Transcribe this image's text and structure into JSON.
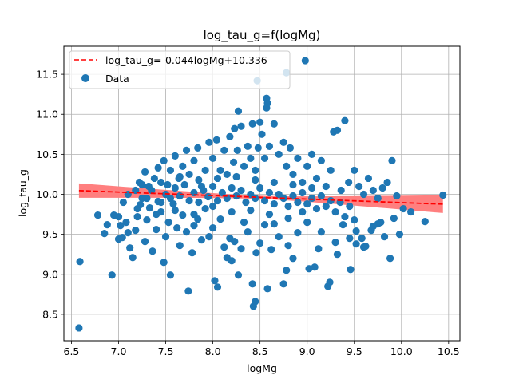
{
  "chart_data": {
    "type": "scatter",
    "title": "log_tau_g=f(logMg)",
    "xlabel": "logMg",
    "ylabel": "log_tau_g",
    "xlim": [
      6.42,
      10.62
    ],
    "ylim": [
      8.17,
      11.85
    ],
    "xticks": [
      6.5,
      7.0,
      7.5,
      8.0,
      8.5,
      9.0,
      9.5,
      10.0,
      10.5
    ],
    "xtick_labels": [
      "6.5",
      "7.0",
      "7.5",
      "8.0",
      "8.5",
      "9.0",
      "9.5",
      "10.0",
      "10.5"
    ],
    "yticks": [
      8.5,
      9.0,
      9.5,
      10.0,
      10.5,
      11.0,
      11.5
    ],
    "ytick_labels": [
      "8.5",
      "9.0",
      "9.5",
      "10.0",
      "10.5",
      "11.0",
      "11.5"
    ],
    "grid": true,
    "legend_position": "top-left",
    "colors": {
      "points": "#1f77b4",
      "fit": "#ff0000",
      "band": "#ff7f7f"
    },
    "fit": {
      "label": "log_tau_g=-0.044logMg+10.336",
      "slope": -0.044,
      "intercept": 10.336,
      "x_range": [
        6.58,
        10.44
      ],
      "band_half_width_at_ends": [
        0.09,
        0.11
      ],
      "band_half_width_at_center": 0.02
    },
    "series": [
      {
        "name": "Data",
        "points": [
          [
            6.58,
            8.33
          ],
          [
            6.59,
            9.16
          ],
          [
            6.78,
            9.74
          ],
          [
            6.85,
            9.51
          ],
          [
            6.88,
            9.62
          ],
          [
            6.93,
            8.99
          ],
          [
            6.95,
            9.74
          ],
          [
            7.0,
            9.44
          ],
          [
            7.02,
            9.61
          ],
          [
            7.04,
            9.46
          ],
          [
            7.05,
            9.9
          ],
          [
            7.08,
            9.65
          ],
          [
            7.1,
            9.52
          ],
          [
            7.12,
            9.33
          ],
          [
            7.15,
            9.21
          ],
          [
            7.18,
            9.55
          ],
          [
            7.2,
            9.72
          ],
          [
            7.23,
            9.87
          ],
          [
            7.25,
            9.95
          ],
          [
            7.28,
            9.41
          ],
          [
            7.3,
            9.68
          ],
          [
            7.33,
            9.83
          ],
          [
            7.36,
            9.29
          ],
          [
            7.4,
            9.56
          ],
          [
            7.42,
            9.91
          ],
          [
            7.45,
            9.78
          ],
          [
            7.48,
            9.15
          ],
          [
            7.5,
            9.47
          ],
          [
            7.53,
            9.65
          ],
          [
            7.55,
            8.99
          ],
          [
            7.58,
            9.88
          ],
          [
            7.62,
            9.58
          ],
          [
            7.65,
            9.36
          ],
          [
            7.68,
            9.74
          ],
          [
            7.72,
            9.53
          ],
          [
            7.74,
            8.79
          ],
          [
            7.78,
            9.27
          ],
          [
            7.8,
            9.61
          ],
          [
            7.84,
            9.69
          ],
          [
            7.88,
            9.43
          ],
          [
            7.92,
            9.82
          ],
          [
            7.96,
            9.47
          ],
          [
            8.0,
            9.58
          ],
          [
            8.02,
            8.92
          ],
          [
            8.05,
            8.84
          ],
          [
            8.08,
            9.69
          ],
          [
            8.12,
            9.34
          ],
          [
            8.15,
            9.21
          ],
          [
            8.18,
            9.45
          ],
          [
            8.2,
            9.17
          ],
          [
            8.23,
            9.41
          ],
          [
            8.27,
            8.99
          ],
          [
            8.3,
            9.32
          ],
          [
            8.33,
            9.65
          ],
          [
            8.37,
            9.53
          ],
          [
            8.42,
            8.88
          ],
          [
            8.43,
            8.6
          ],
          [
            8.45,
            8.66
          ],
          [
            8.46,
            9.27
          ],
          [
            8.5,
            9.39
          ],
          [
            8.55,
            9.62
          ],
          [
            8.58,
            8.82
          ],
          [
            8.62,
            9.31
          ],
          [
            8.65,
            9.63
          ],
          [
            8.7,
            9.47
          ],
          [
            8.75,
            8.88
          ],
          [
            8.78,
            9.05
          ],
          [
            8.8,
            9.36
          ],
          [
            8.85,
            9.2
          ],
          [
            8.9,
            9.52
          ],
          [
            8.95,
            9.78
          ],
          [
            9.02,
            9.07
          ],
          [
            9.08,
            9.09
          ],
          [
            9.15,
            9.53
          ],
          [
            9.22,
            8.85
          ],
          [
            9.24,
            8.9
          ],
          [
            9.3,
            9.4
          ],
          [
            9.38,
            9.62
          ],
          [
            9.46,
            9.06
          ],
          [
            9.52,
            9.54
          ],
          [
            9.6,
            9.34
          ],
          [
            9.68,
            9.55
          ],
          [
            9.75,
            9.63
          ],
          [
            9.82,
            9.47
          ],
          [
            9.88,
            9.2
          ],
          [
            9.98,
            9.5
          ],
          [
            10.1,
            9.78
          ],
          [
            10.25,
            9.66
          ],
          [
            10.44,
            9.99
          ],
          [
            7.0,
            9.72
          ],
          [
            7.1,
            10.0
          ],
          [
            7.18,
            10.05
          ],
          [
            7.22,
            10.15
          ],
          [
            7.28,
            10.28
          ],
          [
            7.32,
            10.1
          ],
          [
            7.38,
            10.2
          ],
          [
            7.42,
            10.33
          ],
          [
            7.48,
            10.42
          ],
          [
            7.52,
            10.12
          ],
          [
            7.55,
            10.3
          ],
          [
            7.6,
            10.48
          ],
          [
            7.64,
            10.2
          ],
          [
            7.68,
            10.35
          ],
          [
            7.72,
            10.55
          ],
          [
            7.75,
            10.25
          ],
          [
            7.8,
            10.42
          ],
          [
            7.84,
            10.58
          ],
          [
            7.88,
            10.1
          ],
          [
            7.92,
            10.3
          ],
          [
            7.96,
            10.65
          ],
          [
            8.0,
            10.45
          ],
          [
            8.04,
            10.68
          ],
          [
            8.08,
            10.3
          ],
          [
            8.12,
            10.55
          ],
          [
            8.15,
            10.25
          ],
          [
            8.18,
            10.72
          ],
          [
            8.22,
            10.4
          ],
          [
            8.26,
            10.55
          ],
          [
            8.3,
            10.85
          ],
          [
            8.33,
            10.35
          ],
          [
            8.37,
            10.6
          ],
          [
            8.4,
            10.45
          ],
          [
            8.42,
            10.88
          ],
          [
            8.45,
            10.3
          ],
          [
            8.48,
            10.58
          ],
          [
            8.5,
            10.9
          ],
          [
            8.52,
            10.75
          ],
          [
            8.55,
            10.45
          ],
          [
            8.57,
            11.2
          ],
          [
            8.58,
            11.14
          ],
          [
            8.6,
            10.6
          ],
          [
            8.65,
            10.88
          ],
          [
            8.7,
            10.5
          ],
          [
            8.75,
            10.65
          ],
          [
            8.78,
            10.35
          ],
          [
            8.82,
            10.58
          ],
          [
            8.85,
            10.25
          ],
          [
            8.9,
            10.45
          ],
          [
            8.95,
            10.15
          ],
          [
            9.0,
            10.35
          ],
          [
            9.05,
            10.5
          ],
          [
            9.1,
            10.2
          ],
          [
            9.15,
            10.42
          ],
          [
            9.2,
            10.1
          ],
          [
            9.25,
            10.3
          ],
          [
            9.28,
            10.78
          ],
          [
            9.32,
            10.8
          ],
          [
            9.36,
            10.05
          ],
          [
            9.4,
            10.92
          ],
          [
            9.44,
            10.15
          ],
          [
            9.5,
            10.3
          ],
          [
            9.55,
            10.1
          ],
          [
            9.6,
            10.0
          ],
          [
            9.65,
            10.2
          ],
          [
            9.7,
            10.05
          ],
          [
            9.75,
            9.95
          ],
          [
            9.8,
            10.08
          ],
          [
            9.85,
            10.15
          ],
          [
            9.9,
            10.42
          ],
          [
            9.95,
            9.98
          ],
          [
            8.23,
            10.82
          ],
          [
            8.27,
            11.04
          ],
          [
            8.47,
            11.42
          ],
          [
            8.57,
            11.08
          ],
          [
            8.78,
            11.52
          ],
          [
            8.98,
            11.67
          ],
          [
            7.3,
            9.95
          ],
          [
            7.35,
            10.05
          ],
          [
            7.45,
            9.9
          ],
          [
            7.5,
            10.0
          ],
          [
            7.55,
            9.95
          ],
          [
            7.6,
            10.08
          ],
          [
            7.65,
            9.98
          ],
          [
            7.7,
            10.12
          ],
          [
            7.75,
            9.92
          ],
          [
            7.8,
            10.02
          ],
          [
            7.85,
            9.9
          ],
          [
            7.9,
            10.05
          ],
          [
            7.95,
            9.97
          ],
          [
            8.0,
            10.1
          ],
          [
            8.05,
            9.92
          ],
          [
            8.1,
            10.02
          ],
          [
            8.15,
            9.95
          ],
          [
            8.2,
            10.08
          ],
          [
            8.25,
            9.98
          ],
          [
            8.3,
            10.05
          ],
          [
            8.35,
            9.9
          ],
          [
            8.4,
            10.0
          ],
          [
            8.45,
            9.95
          ],
          [
            8.5,
            10.08
          ],
          [
            8.55,
            9.92
          ],
          [
            8.6,
            10.02
          ],
          [
            8.65,
            9.88
          ],
          [
            8.7,
            10.0
          ],
          [
            8.75,
            9.95
          ],
          [
            8.8,
            9.85
          ],
          [
            8.85,
            9.98
          ],
          [
            8.9,
            9.9
          ],
          [
            8.95,
            10.02
          ],
          [
            9.0,
            9.88
          ],
          [
            9.05,
            9.95
          ],
          [
            9.1,
            9.82
          ],
          [
            9.15,
            9.98
          ],
          [
            9.2,
            9.85
          ],
          [
            9.25,
            9.92
          ],
          [
            9.3,
            9.78
          ],
          [
            9.35,
            9.9
          ],
          [
            9.4,
            9.72
          ],
          [
            9.45,
            9.85
          ],
          [
            9.5,
            9.68
          ],
          [
            7.2,
            9.82
          ],
          [
            7.4,
            9.75
          ],
          [
            7.6,
            9.8
          ],
          [
            7.8,
            9.75
          ],
          [
            8.0,
            9.85
          ],
          [
            8.2,
            9.78
          ],
          [
            8.4,
            9.8
          ],
          [
            8.6,
            9.75
          ],
          [
            8.8,
            9.7
          ],
          [
            9.0,
            9.65
          ],
          [
            7.25,
            10.12
          ],
          [
            7.45,
            10.15
          ],
          [
            7.65,
            10.22
          ],
          [
            7.85,
            10.18
          ],
          [
            8.05,
            10.2
          ],
          [
            8.25,
            10.22
          ],
          [
            8.45,
            10.18
          ],
          [
            8.65,
            10.15
          ],
          [
            8.85,
            10.12
          ],
          [
            9.05,
            10.08
          ],
          [
            9.58,
            9.45
          ],
          [
            9.62,
            9.35
          ],
          [
            9.7,
            9.6
          ],
          [
            9.78,
            9.65
          ],
          [
            9.92,
            9.7
          ],
          [
            10.02,
            9.82
          ],
          [
            9.45,
            9.45
          ],
          [
            9.52,
            9.38
          ],
          [
            9.32,
            9.25
          ],
          [
            9.12,
            9.32
          ]
        ]
      }
    ]
  }
}
